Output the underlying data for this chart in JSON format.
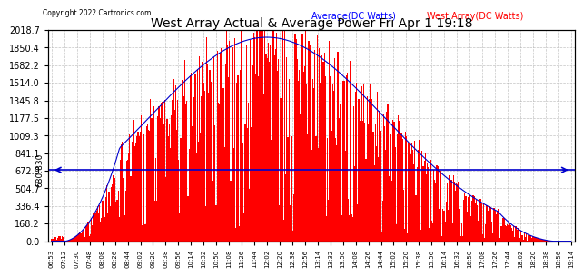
{
  "title": "West Array Actual & Average Power Fri Apr 1 19:18",
  "copyright": "Copyright 2022 Cartronics.com",
  "legend_avg": "Average(DC Watts)",
  "legend_west": "West Array(DC Watts)",
  "ymax": 2018.7,
  "ymin": 0.0,
  "yticks_right": [
    0.0,
    168.2,
    336.4,
    504.7,
    672.9,
    841.1,
    1009.3,
    1177.5,
    1345.8,
    1514.0,
    1682.2,
    1850.4,
    2018.7
  ],
  "hline_value": 680.83,
  "bg_color": "#ffffff",
  "grid_color": "#aaaaaa",
  "bar_color": "#ff0000",
  "avg_line_color": "#0000cc",
  "title_color": "#000000",
  "copyright_color": "#000000",
  "legend_avg_color": "#0000ff",
  "legend_west_color": "#ff0000",
  "hline_color": "#0000cc",
  "xtick_labels": [
    "06:53",
    "07:12",
    "07:30",
    "07:48",
    "08:08",
    "08:26",
    "08:44",
    "09:02",
    "09:20",
    "09:38",
    "09:56",
    "10:14",
    "10:32",
    "10:50",
    "11:08",
    "11:26",
    "11:44",
    "12:02",
    "12:20",
    "12:38",
    "12:56",
    "13:14",
    "13:32",
    "13:50",
    "14:08",
    "14:26",
    "14:44",
    "15:02",
    "15:20",
    "15:38",
    "15:56",
    "16:14",
    "16:32",
    "16:50",
    "17:08",
    "17:26",
    "17:44",
    "18:02",
    "18:20",
    "18:38",
    "18:56",
    "19:14"
  ]
}
